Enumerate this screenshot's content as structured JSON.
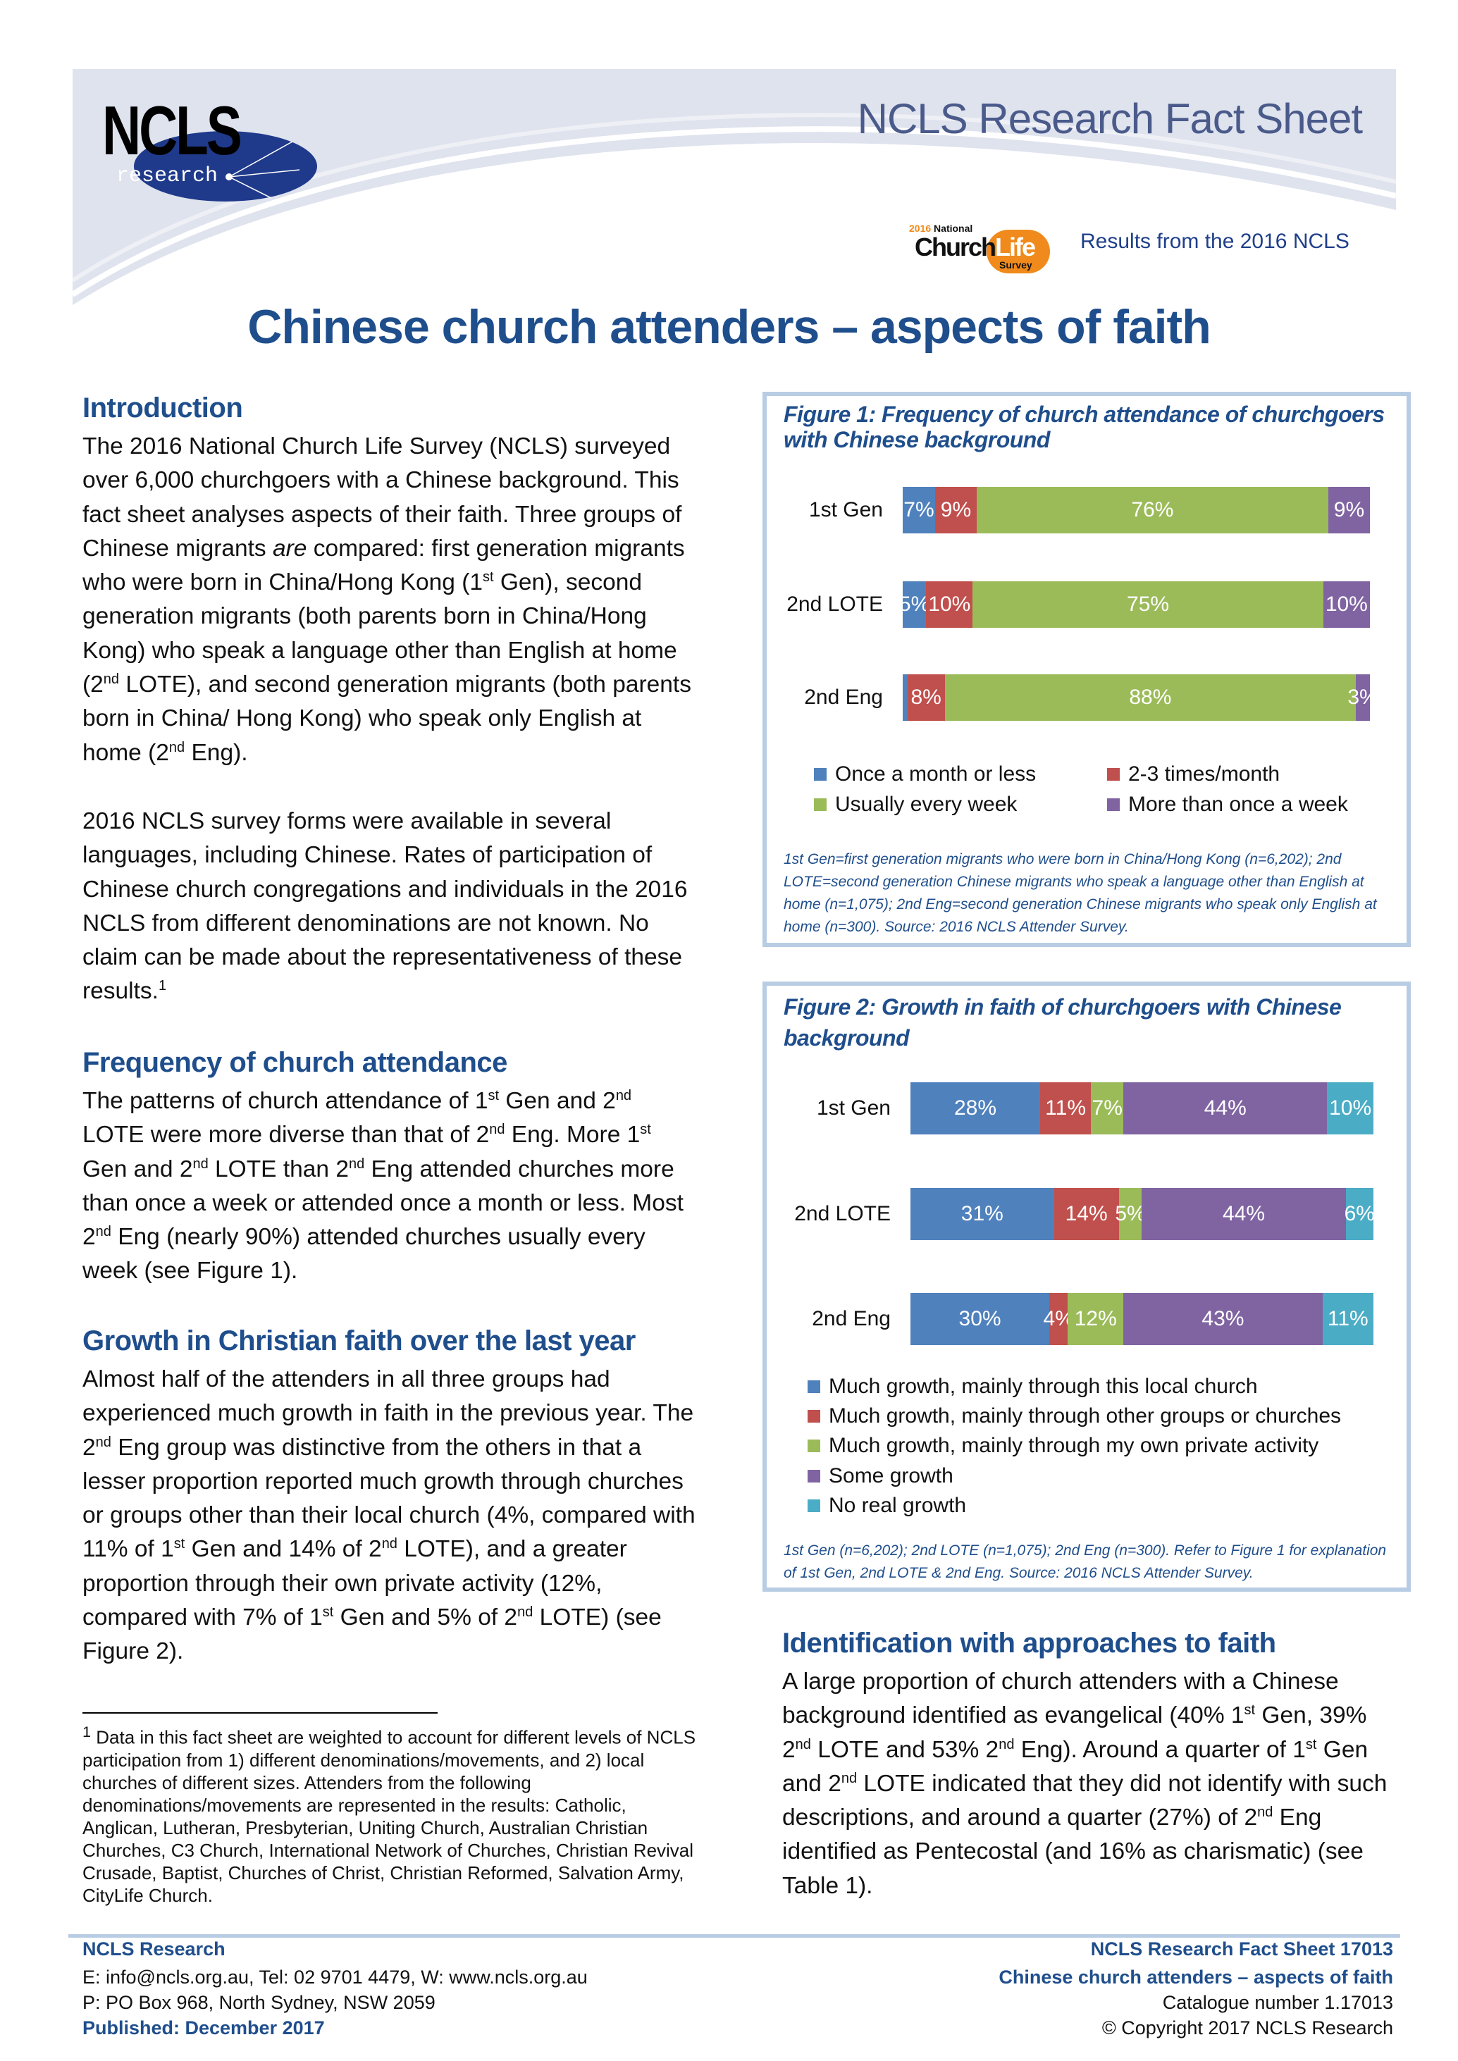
{
  "header": {
    "logo_text": "NCLS",
    "logo_sub": "research",
    "fact_sheet_title": "NCLS Research Fact Sheet",
    "survey_logo": {
      "year": "2016",
      "national": "National",
      "church": "Church",
      "life": "Life",
      "survey": "Survey"
    },
    "results_text": "Results from the 2016 NCLS"
  },
  "title": "Chinese church attenders – aspects of faith",
  "sections": {
    "intro": {
      "heading": "Introduction",
      "p1": [
        "The 2016 National Church Life Survey (NCLS) surveyed over 6,000 churchgoers with a Chinese background. This fact sheet analyses aspects of their faith. Three groups of Chinese migrants ",
        {
          "i": "are"
        },
        " compared: first generation migrants who were born in China/Hong Kong (1",
        {
          "sup": "st"
        },
        " Gen), second generation migrants (both parents born in China/Hong Kong) who speak a language other than English at home (2",
        {
          "sup": "nd"
        },
        " LOTE), and second generation migrants (both parents born in China/ Hong Kong) who speak only English at home (2",
        {
          "sup": "nd"
        },
        " Eng)."
      ],
      "p2": [
        "2016 NCLS survey forms were available in several languages, including Chinese. Rates of participation of Chinese church congregations and individuals in the 2016 NCLS from different denominations are not known. No claim can be made about the representativeness of these results.",
        {
          "sup": "1"
        }
      ]
    },
    "frequency": {
      "heading": "Frequency of church attendance",
      "p": [
        "The patterns of church attendance of 1",
        {
          "sup": "st"
        },
        " Gen and 2",
        {
          "sup": "nd"
        },
        " LOTE were more diverse than that of 2",
        {
          "sup": "nd"
        },
        " Eng. More 1",
        {
          "sup": "st"
        },
        " Gen and 2",
        {
          "sup": "nd"
        },
        " LOTE than 2",
        {
          "sup": "nd"
        },
        " Eng attended churches more than once a week or attended once a month or less. Most 2",
        {
          "sup": "nd"
        },
        " Eng (nearly 90%) attended churches usually every week (see Figure 1)."
      ]
    },
    "growth": {
      "heading": "Growth in Christian faith over the last year",
      "p": [
        "Almost half of the attenders in all three groups had experienced much growth in faith in the previous year. The 2",
        {
          "sup": "nd"
        },
        " Eng group was distinctive from the others in that a lesser proportion reported much growth through churches or groups other than their local church (4%, compared with 11% of 1",
        {
          "sup": "st"
        },
        " Gen and 14% of 2",
        {
          "sup": "nd"
        },
        " LOTE), and a greater proportion through their own private activity (12%, compared with 7% of 1",
        {
          "sup": "st"
        },
        " Gen and 5% of 2",
        {
          "sup": "nd"
        },
        " LOTE) (see Figure 2)."
      ]
    },
    "identification": {
      "heading": "Identification with approaches to faith",
      "p": [
        "A large proportion of church attenders with a Chinese background identified as evangelical (40% 1",
        {
          "sup": "st"
        },
        " Gen, 39% 2",
        {
          "sup": "nd"
        },
        " LOTE and 53% 2",
        {
          "sup": "nd"
        },
        " Eng). Around a quarter of 1",
        {
          "sup": "st"
        },
        " Gen and 2",
        {
          "sup": "nd"
        },
        " LOTE indicated that they did not identify with such descriptions, and around a quarter (27%) of 2",
        {
          "sup": "nd"
        },
        " Eng identified as Pentecostal (and 16% as charismatic) (see Table 1)."
      ]
    }
  },
  "footnote": [
    {
      "sup": "1"
    },
    " Data in this fact sheet are weighted to account for different levels of NCLS participation from 1) different denominations/movements, and 2) local churches of different sizes. Attenders from the following denominations/movements are represented in the results: Catholic, Anglican, Lutheran, Presbyterian, Uniting Church, Australian Christian Churches, C3 Church, International Network of Churches, Christian Revival Crusade, Baptist, Churches of Christ, Christian Reformed, Salvation Army, CityLife Church."
  ],
  "chart_data": [
    {
      "type": "bar",
      "stacked": true,
      "orientation": "horizontal",
      "title": "Figure 1: Frequency of church attendance of churchgoers with Chinese background",
      "categories": [
        "1st Gen",
        "2nd LOTE",
        "2nd Eng"
      ],
      "series": [
        {
          "name": "Once a month or less",
          "color": "#4F81BD",
          "values": [
            7,
            5,
            1
          ],
          "labels": [
            "7%",
            "5%",
            ""
          ]
        },
        {
          "name": "2-3 times/month",
          "color": "#C0504D",
          "values": [
            9,
            10,
            8
          ],
          "labels": [
            "9%",
            "10%",
            "8%"
          ]
        },
        {
          "name": "Usually every week",
          "color": "#9BBB59",
          "values": [
            76,
            75,
            88
          ],
          "labels": [
            "76%",
            "75%",
            "88%"
          ]
        },
        {
          "name": "More than once a week",
          "color": "#8064A2",
          "values": [
            9,
            10,
            3
          ],
          "labels": [
            "9%",
            "10%",
            "3%"
          ]
        }
      ],
      "legend_position": "bottom",
      "caption": "1st Gen=first generation migrants who were born in China/Hong Kong (n=6,202); 2nd LOTE=second generation Chinese migrants who speak a language other than English at home (n=1,075); 2nd Eng=second generation Chinese migrants who speak only English at home (n=300). Source: 2016 NCLS Attender Survey."
    },
    {
      "type": "bar",
      "stacked": true,
      "orientation": "horizontal",
      "title": "Figure 2: Growth in faith of churchgoers with Chinese background",
      "categories": [
        "1st Gen",
        "2nd LOTE",
        "2nd Eng"
      ],
      "series": [
        {
          "name": "Much growth, mainly through this local church",
          "color": "#4F81BD",
          "values": [
            28,
            31,
            30
          ],
          "labels": [
            "28%",
            "31%",
            "30%"
          ]
        },
        {
          "name": "Much growth, mainly through other groups or churches",
          "color": "#C0504D",
          "values": [
            11,
            14,
            4
          ],
          "labels": [
            "11%",
            "14%",
            "4%"
          ]
        },
        {
          "name": "Much growth, mainly through my own private activity",
          "color": "#9BBB59",
          "values": [
            7,
            5,
            12
          ],
          "labels": [
            "7%",
            "5%",
            "12%"
          ]
        },
        {
          "name": "Some growth",
          "color": "#8064A2",
          "values": [
            44,
            44,
            43
          ],
          "labels": [
            "44%",
            "44%",
            "43%"
          ]
        },
        {
          "name": "No real growth",
          "color": "#4BACC6",
          "values": [
            10,
            6,
            11
          ],
          "labels": [
            "10%",
            "6%",
            "11%"
          ]
        }
      ],
      "legend_position": "bottom",
      "caption": "1st Gen (n=6,202); 2nd LOTE (n=1,075); 2nd Eng (n=300). Refer to Figure 1 for explanation of 1st Gen, 2nd LOTE & 2nd Eng. Source: 2016 NCLS Attender Survey."
    }
  ],
  "footer": {
    "left": {
      "org": "NCLS Research",
      "contact": "E: info@ncls.org.au, Tel: 02 9701 4479, W: www.ncls.org.au",
      "address": "P: PO Box 968, North Sydney, NSW 2059",
      "published": "Published: December 2017"
    },
    "right": {
      "series": "NCLS Research Fact Sheet 17013",
      "title": "Chinese church attenders – aspects of faith",
      "catalogue": "Catalogue number 1.17013",
      "copyright": "© Copyright 2017 NCLS Research"
    }
  },
  "colors": {
    "heading": "#1f4e8c",
    "figure_border": "#b8cce4",
    "header_bg": "#dfe3ee"
  }
}
